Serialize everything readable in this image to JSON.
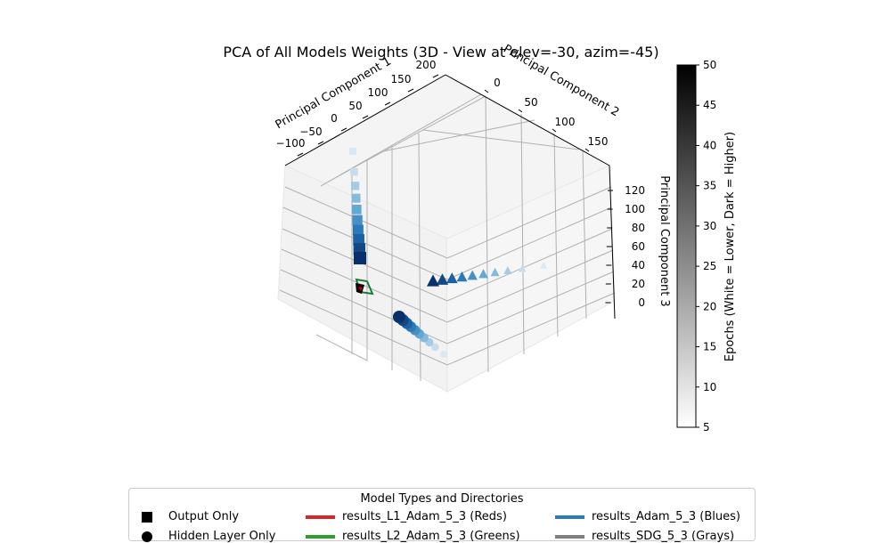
{
  "chart_data": {
    "type": "scatter",
    "title": "PCA of All Models Weights (3D - View at elev=-30, azim=-45)",
    "xlabel": "Principal Component 1",
    "ylabel": "Principal Component 2",
    "zlabel": "Principal Component 3",
    "x_ticks": [
      "−100",
      "−50",
      "0",
      "50",
      "100",
      "150",
      "200"
    ],
    "y_ticks": [
      "0",
      "50",
      "100",
      "150"
    ],
    "z_ticks": [
      "0",
      "20",
      "40",
      "60",
      "80",
      "100",
      "120"
    ],
    "colorbar": {
      "label": "Epochs (White = Lower, Dark = Higher)",
      "ticks": [
        "5",
        "10",
        "15",
        "20",
        "25",
        "30",
        "35",
        "40",
        "45",
        "50"
      ],
      "range": [
        5,
        50
      ],
      "cmap": "Greys"
    },
    "legend": {
      "title": "Model Types and Directories",
      "markers": [
        {
          "label": "Output Only",
          "shape": "square"
        },
        {
          "label": "Hidden Layer Only",
          "shape": "circle"
        }
      ],
      "directories": [
        {
          "label": "results_L1_Adam_5_3 (Reds)",
          "color": "#d62728"
        },
        {
          "label": "results_L2_Adam_5_3 (Greens)",
          "color": "#2ca02c"
        },
        {
          "label": "results_Adam_5_3 (Blues)",
          "color": "#2b7bba"
        },
        {
          "label": "results_SDG_5_3 (Grays)",
          "color": "#808080"
        }
      ]
    },
    "series": [
      {
        "shape": "square",
        "cmap": "Blues",
        "epochs": [
          5,
          10,
          15,
          20,
          25,
          30,
          35,
          40,
          45,
          50
        ]
      },
      {
        "shape": "triangle",
        "cmap": "Blues",
        "epochs": [
          5,
          10,
          15,
          20,
          25,
          30,
          35,
          40,
          45,
          50
        ]
      },
      {
        "shape": "circle",
        "cmap": "Blues",
        "epochs": [
          5,
          10,
          15,
          20,
          25,
          30,
          35,
          40,
          45,
          50
        ]
      }
    ]
  }
}
